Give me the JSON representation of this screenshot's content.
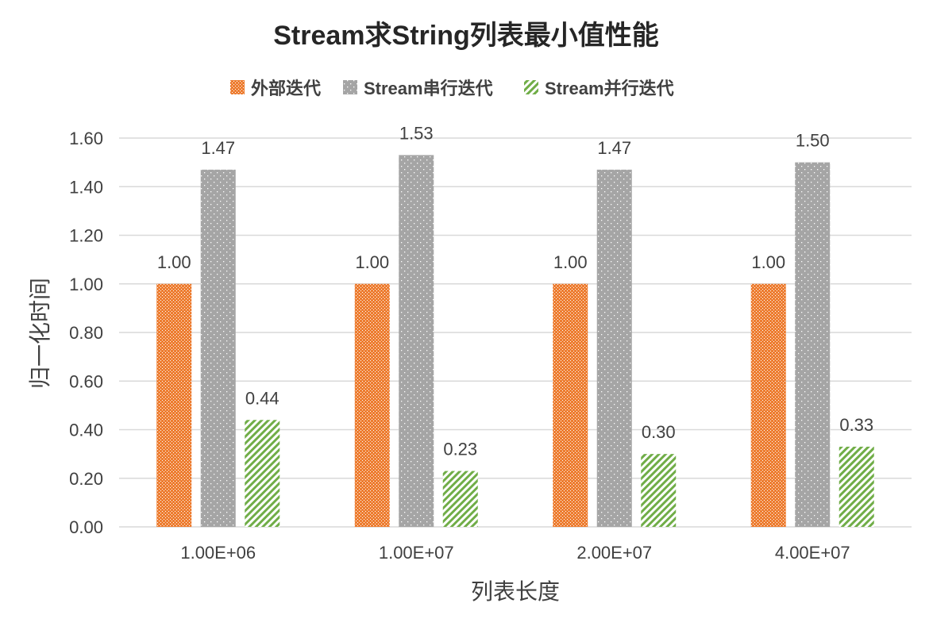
{
  "chart_data": {
    "type": "bar",
    "title": "Stream求String列表最小值性能",
    "xlabel": "列表长度",
    "ylabel": "归一化时间",
    "categories": [
      "1.00E+06",
      "1.00E+07",
      "2.00E+07",
      "4.00E+07"
    ],
    "series": [
      {
        "name": "外部迭代",
        "values": [
          1.0,
          1.0,
          1.0,
          1.0
        ],
        "color": "#ED7D31",
        "pattern": "checker"
      },
      {
        "name": "Stream串行迭代",
        "values": [
          1.47,
          1.53,
          1.47,
          1.5
        ],
        "color": "#A5A5A5",
        "pattern": "dots"
      },
      {
        "name": "Stream并行迭代",
        "values": [
          0.44,
          0.23,
          0.3,
          0.33
        ],
        "color": "#70AD47",
        "pattern": "diagonal"
      }
    ],
    "ylim": [
      0,
      1.6
    ],
    "yticks": [
      "0.00",
      "0.20",
      "0.40",
      "0.60",
      "0.80",
      "1.00",
      "1.20",
      "1.40",
      "1.60"
    ],
    "grid": true,
    "legend": "top"
  }
}
